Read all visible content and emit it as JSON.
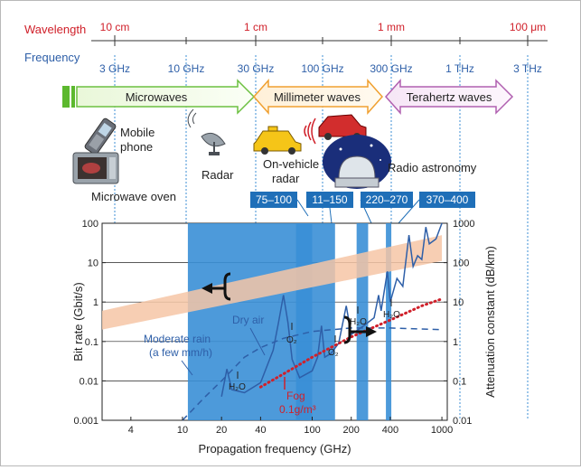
{
  "header": {
    "wavelength_label": "Wavelength",
    "frequency_label": "Frequency",
    "wavelength_ticks": [
      "10 cm",
      "1 cm",
      "1 mm",
      "100 μm"
    ],
    "frequency_ticks": [
      "3 GHz",
      "10 GHz",
      "30 GHz",
      "100 GHz",
      "300 GHz",
      "1 THz",
      "3 THz"
    ]
  },
  "bands": {
    "microwaves": "Microwaves",
    "millimeter": "Millimeter waves",
    "terahertz": "Terahertz waves"
  },
  "applications": {
    "mobile_phone_line1": "Mobile",
    "mobile_phone_line2": "phone",
    "radar": "Radar",
    "vehicle_radar_line1": "On-vehicle",
    "vehicle_radar_line2": "radar",
    "radio_astronomy": "Radio astronomy",
    "microwave_oven": "Microwave oven"
  },
  "windows": [
    "75–100",
    "11–150",
    "220–270",
    "370–400"
  ],
  "chart": {
    "xlabel": "Propagation frequency (GHz)",
    "ylabel_left": "Bit rate (Gbit/s)",
    "ylabel_right": "Attenuation constant (dB/km)",
    "x_ticks": [
      "4",
      "10",
      "20",
      "40",
      "100",
      "200",
      "400",
      "1000"
    ],
    "y_left_ticks": [
      "100",
      "10",
      "1",
      "0.1",
      "0.01",
      "0.001"
    ],
    "y_right_ticks": [
      "1000",
      "100",
      "10",
      "1",
      "0.1",
      "0.01"
    ],
    "annotations": {
      "moderate_rain_line1": "Moderate rain",
      "moderate_rain_line2": "(a few mm/h)",
      "dry_air": "Dry air",
      "fog_line1": "Fog",
      "fog_line2": "0.1g/m³",
      "h2o": "H₂O",
      "o2": "O₂"
    }
  },
  "chart_data": {
    "type": "line",
    "xlabel": "Propagation frequency (GHz)",
    "ylabel_left": "Bit rate (Gbit/s)",
    "ylabel_right": "Attenuation constant (dB/km)",
    "x_scale": "log",
    "y_scale": "log",
    "xlim": [
      2.4,
      1100
    ],
    "ylim_left": [
      0.001,
      100
    ],
    "ylim_right": [
      0.01,
      1000
    ],
    "series": [
      {
        "name": "Dry air",
        "axis": "right",
        "color": "#2e5fa8",
        "style": "solid",
        "points": [
          [
            20,
            0.04
          ],
          [
            22,
            0.2
          ],
          [
            24,
            0.06
          ],
          [
            30,
            0.05
          ],
          [
            40,
            0.09
          ],
          [
            50,
            0.6
          ],
          [
            55,
            3
          ],
          [
            60,
            15
          ],
          [
            65,
            3
          ],
          [
            70,
            0.35
          ],
          [
            80,
            0.12
          ],
          [
            100,
            0.18
          ],
          [
            110,
            0.4
          ],
          [
            118,
            2.5
          ],
          [
            125,
            0.4
          ],
          [
            140,
            0.5
          ],
          [
            160,
            0.9
          ],
          [
            183,
            8
          ],
          [
            200,
            1.5
          ],
          [
            250,
            2.5
          ],
          [
            300,
            4
          ],
          [
            325,
            15
          ],
          [
            340,
            6
          ],
          [
            380,
            60
          ],
          [
            400,
            10
          ],
          [
            450,
            40
          ],
          [
            500,
            25
          ],
          [
            557,
            500
          ],
          [
            600,
            80
          ],
          [
            650,
            150
          ],
          [
            700,
            120
          ],
          [
            752,
            800
          ],
          [
            800,
            300
          ],
          [
            900,
            400
          ],
          [
            988,
            900
          ],
          [
            1000,
            1000
          ]
        ]
      },
      {
        "name": "Moderate rain (a few mm/h)",
        "axis": "right",
        "color": "#2e5fa8",
        "style": "dashed",
        "points": [
          [
            10,
            0.01
          ],
          [
            15,
            0.04
          ],
          [
            20,
            0.1
          ],
          [
            30,
            0.4
          ],
          [
            40,
            0.7
          ],
          [
            60,
            1.2
          ],
          [
            100,
            1.8
          ],
          [
            200,
            2.2
          ],
          [
            400,
            2.2
          ],
          [
            1000,
            2.0
          ]
        ]
      },
      {
        "name": "Fog 0.1g/m³",
        "axis": "right",
        "color": "#d0202a",
        "style": "dotted",
        "points": [
          [
            40,
            0.07
          ],
          [
            60,
            0.15
          ],
          [
            100,
            0.4
          ],
          [
            200,
            1.3
          ],
          [
            400,
            3.5
          ],
          [
            700,
            8
          ],
          [
            1000,
            12
          ]
        ]
      },
      {
        "name": "Bit rate",
        "axis": "left",
        "color": "#f6c6a6",
        "style": "band",
        "lower": [
          [
            2.4,
            0.2
          ],
          [
            1000,
            11
          ]
        ],
        "upper": [
          [
            2.4,
            0.6
          ],
          [
            1000,
            50
          ]
        ]
      }
    ],
    "highlight_windows_ghz": [
      [
        75,
        100
      ],
      [
        11,
        150
      ],
      [
        220,
        270
      ],
      [
        370,
        400
      ]
    ]
  }
}
